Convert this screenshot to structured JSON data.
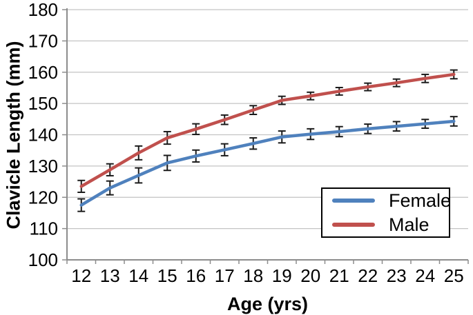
{
  "chart_data": {
    "type": "line",
    "title": "",
    "xlabel": "Age (yrs)",
    "ylabel": "Clavicle Length (mm)",
    "categories": [
      12,
      13,
      14,
      15,
      16,
      17,
      18,
      19,
      20,
      21,
      22,
      23,
      24,
      25
    ],
    "y_ticks": [
      100,
      110,
      120,
      130,
      140,
      150,
      160,
      170,
      180
    ],
    "ylim": [
      100,
      180
    ],
    "grid": true,
    "error_bars": true,
    "legend_position": "lower-right",
    "series": [
      {
        "name": "Female",
        "color": "#4F81BD",
        "values": [
          117.5,
          123,
          127,
          131,
          133.2,
          135.2,
          137.2,
          139.3,
          140.2,
          141,
          141.9,
          142.7,
          143.5,
          144.3
        ],
        "error": [
          2.0,
          2.2,
          2.4,
          2.4,
          1.9,
          1.9,
          1.8,
          1.9,
          1.7,
          1.6,
          1.5,
          1.5,
          1.4,
          1.5
        ]
      },
      {
        "name": "Male",
        "color": "#C0504D",
        "values": [
          123.5,
          128.8,
          134.2,
          139,
          141.8,
          144.8,
          147.9,
          151,
          152.4,
          153.9,
          155.3,
          156.6,
          158,
          159.3
        ],
        "error": [
          1.9,
          1.9,
          2.2,
          2.0,
          1.7,
          1.5,
          1.4,
          1.3,
          1.2,
          1.2,
          1.2,
          1.2,
          1.3,
          1.4
        ]
      }
    ],
    "colors": {
      "gridline": "#C3C3C3",
      "axis": "#8C8C8C",
      "error_bar": "#1a1a1a",
      "text": "#000000",
      "legend_border": "#000000",
      "background": "#ffffff"
    }
  }
}
